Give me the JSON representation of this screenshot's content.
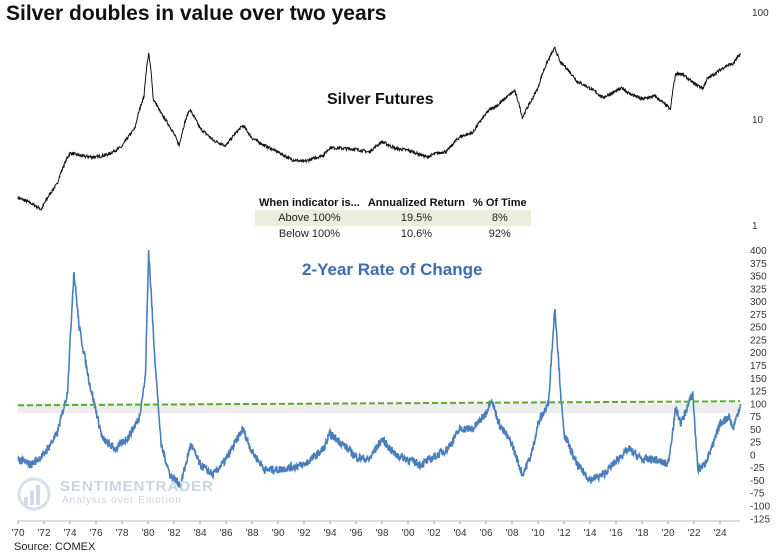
{
  "title": "Silver doubles in value over two years",
  "source": "Source: COMEX",
  "watermark": {
    "name": "SENTIMENTRADER",
    "tagline": "Analysis over Emotion"
  },
  "table": {
    "headers": [
      "When indicator is...",
      "Annualized Return",
      "% Of Time"
    ],
    "rows": [
      [
        "Above 100%",
        "19.5%",
        "8%"
      ],
      [
        "Below 100%",
        "10.6%",
        "92%"
      ]
    ]
  },
  "chart_data": [
    {
      "type": "line",
      "title": "Silver Futures",
      "yscale": "log",
      "ylim": [
        1,
        100
      ],
      "yticks": [
        "100",
        "10",
        "1"
      ],
      "x": [
        1970,
        1971,
        1971.8,
        1973,
        1974,
        1975,
        1976,
        1977,
        1978,
        1979,
        1979.7,
        1980.05,
        1980.4,
        1981,
        1982.4,
        1983.2,
        1984,
        1985,
        1986,
        1987.3,
        1988,
        1989,
        1990,
        1991,
        1992,
        1993.5,
        1994,
        1995,
        1996,
        1997,
        1998,
        1999,
        2000,
        2001.5,
        2002,
        2003,
        2004,
        2005,
        2006.3,
        2007,
        2008.2,
        2008.8,
        2009.5,
        2010,
        2011.3,
        2011.7,
        2012,
        2013,
        2014,
        2015,
        2016.5,
        2017,
        2018,
        2019,
        2020.2,
        2020.6,
        2021,
        2022,
        2022.7,
        2023,
        2024,
        2024.5,
        2025,
        2025.6
      ],
      "values": [
        1.8,
        1.6,
        1.4,
        2.4,
        4.7,
        4.4,
        4.3,
        4.6,
        5.4,
        8,
        16,
        40,
        15,
        11,
        5.5,
        12,
        8,
        6.2,
        5.5,
        8.5,
        6.5,
        5.5,
        4.8,
        4.1,
        3.9,
        4.5,
        5.3,
        5.2,
        5.1,
        4.8,
        6,
        5.2,
        5,
        4.3,
        4.6,
        4.9,
        6.7,
        7.3,
        12,
        13.4,
        18,
        10,
        14.6,
        19,
        45,
        33,
        31,
        22,
        19,
        15.5,
        19,
        17,
        15,
        16,
        12,
        26,
        26,
        21,
        19,
        23,
        28,
        31,
        32,
        40
      ]
    },
    {
      "type": "line",
      "title": "2-Year Rate of Change",
      "ylim": [
        -125,
        400
      ],
      "yticks": [
        "400",
        "375",
        "350",
        "325",
        "300",
        "275",
        "250",
        "225",
        "200",
        "175",
        "150",
        "125",
        "100",
        "75",
        "50",
        "25",
        "0",
        "-25",
        "-50",
        "-75",
        "-100",
        "-125"
      ],
      "xticks": [
        "'70",
        "'72",
        "'74",
        "'76",
        "'78",
        "'80",
        "'82",
        "'84",
        "'86",
        "'88",
        "'90",
        "'92",
        "'94",
        "'96",
        "'98",
        "'00",
        "'02",
        "'04",
        "'06",
        "'08",
        "'10",
        "'12",
        "'14",
        "'16",
        "'18",
        "'20",
        "'22",
        "'24"
      ],
      "threshold": 100,
      "x": [
        1970,
        1971,
        1972,
        1973,
        1973.8,
        1974.3,
        1974.7,
        1975.5,
        1976.5,
        1977.5,
        1978.5,
        1979.3,
        1979.8,
        1980.05,
        1980.5,
        1981,
        1981.7,
        1982.5,
        1983.3,
        1984,
        1985,
        1986,
        1987.3,
        1988,
        1989,
        1990,
        1991,
        1992,
        1993.5,
        1994,
        1995,
        1996,
        1997,
        1998,
        1999,
        2000,
        2001,
        2002,
        2003,
        2004,
        2005,
        2006,
        2006.4,
        2007,
        2008,
        2008.8,
        2009.5,
        2010,
        2010.8,
        2011.3,
        2011.8,
        2012,
        2013,
        2014,
        2015,
        2016.5,
        2017,
        2018,
        2019,
        2020,
        2020.6,
        2021,
        2021.9,
        2022.3,
        2022.8,
        2023.5,
        2024,
        2024.7,
        2025,
        2025.6
      ],
      "values": [
        -10,
        -20,
        0,
        40,
        120,
        360,
        250,
        140,
        30,
        10,
        35,
        70,
        150,
        400,
        200,
        20,
        -40,
        -60,
        20,
        -20,
        -40,
        -10,
        50,
        5,
        -30,
        -30,
        -25,
        -20,
        10,
        40,
        20,
        -5,
        -10,
        30,
        0,
        -10,
        -20,
        -5,
        10,
        50,
        50,
        80,
        110,
        60,
        20,
        -40,
        0,
        60,
        100,
        290,
        100,
        40,
        -20,
        -50,
        -40,
        0,
        10,
        -10,
        -10,
        -20,
        90,
        60,
        120,
        -30,
        -20,
        20,
        60,
        75,
        50,
        100
      ]
    }
  ]
}
